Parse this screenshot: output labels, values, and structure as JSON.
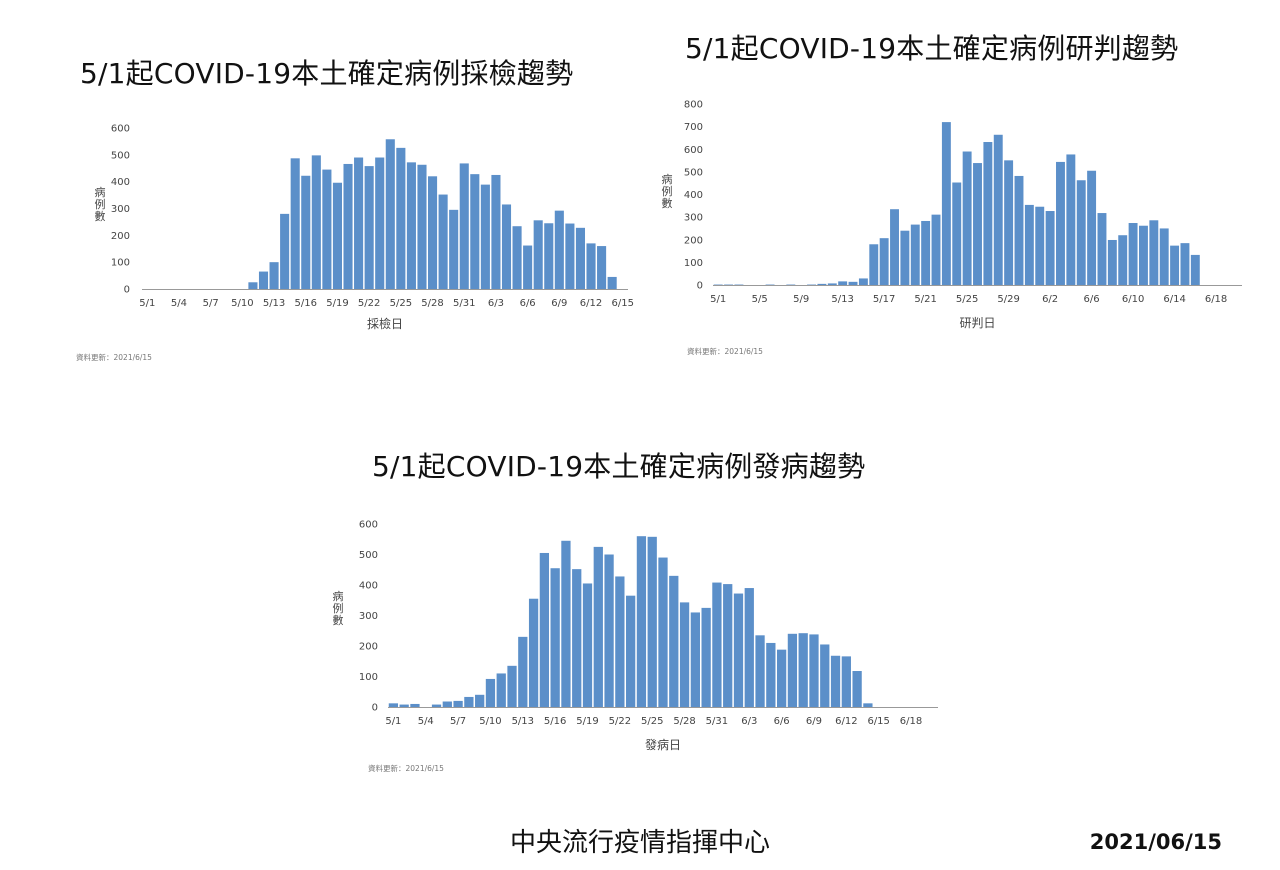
{
  "footer": {
    "org": "中央流行疫情指揮中心",
    "date": "2021/06/15"
  },
  "chart_data": [
    {
      "type": "bar",
      "title": "5/1起COVID-19本土確定病例採檢趨勢",
      "xlabel": "採檢日",
      "ylabel": "病例數",
      "ylim": [
        0,
        600
      ],
      "yticks": [
        0,
        100,
        200,
        300,
        400,
        500,
        600
      ],
      "note": "資料更新：2021/6/15",
      "x_start_label": "5/1",
      "xtick_labels": [
        "5/1",
        "5/4",
        "5/7",
        "5/10",
        "5/13",
        "5/16",
        "5/19",
        "5/22",
        "5/25",
        "5/28",
        "5/31",
        "6/3",
        "6/6",
        "6/9",
        "6/12",
        "6/15"
      ],
      "color": "#5b8fc9",
      "categories": [
        "5/1",
        "5/2",
        "5/3",
        "5/4",
        "5/5",
        "5/6",
        "5/7",
        "5/8",
        "5/9",
        "5/10",
        "5/11",
        "5/12",
        "5/13",
        "5/14",
        "5/15",
        "5/16",
        "5/17",
        "5/18",
        "5/19",
        "5/20",
        "5/21",
        "5/22",
        "5/23",
        "5/24",
        "5/25",
        "5/26",
        "5/27",
        "5/28",
        "5/29",
        "5/30",
        "5/31",
        "6/1",
        "6/2",
        "6/3",
        "6/4",
        "6/5",
        "6/6",
        "6/7",
        "6/8",
        "6/9",
        "6/10",
        "6/11",
        "6/12",
        "6/13",
        "6/14",
        "6/15"
      ],
      "values": [
        0,
        0,
        0,
        0,
        0,
        0,
        0,
        0,
        0,
        0,
        25,
        65,
        100,
        280,
        487,
        422,
        498,
        445,
        396,
        466,
        490,
        458,
        490,
        558,
        526,
        472,
        463,
        420,
        352,
        295,
        468,
        428,
        389,
        425,
        315,
        234,
        162,
        256,
        245,
        292,
        244,
        228,
        170,
        160,
        45,
        0
      ]
    },
    {
      "type": "bar",
      "title": "5/1起COVID-19本土確定病例研判趨勢",
      "xlabel": "研判日",
      "ylabel": "病例數",
      "ylim": [
        0,
        800
      ],
      "yticks": [
        0,
        100,
        200,
        300,
        400,
        500,
        600,
        700,
        800
      ],
      "note": "資料更新：2021/6/15",
      "x_start_label": "5/1",
      "xtick_labels": [
        "5/1",
        "5/5",
        "5/9",
        "5/13",
        "5/17",
        "5/21",
        "5/25",
        "5/29",
        "6/2",
        "6/6",
        "6/10",
        "6/14",
        "6/18"
      ],
      "color": "#5b8fc9",
      "categories": [
        "5/1",
        "5/2",
        "5/3",
        "5/4",
        "5/5",
        "5/6",
        "5/7",
        "5/8",
        "5/9",
        "5/10",
        "5/11",
        "5/12",
        "5/13",
        "5/14",
        "5/15",
        "5/16",
        "5/17",
        "5/18",
        "5/19",
        "5/20",
        "5/21",
        "5/22",
        "5/23",
        "5/24",
        "5/25",
        "5/26",
        "5/27",
        "5/28",
        "5/29",
        "5/30",
        "5/31",
        "6/1",
        "6/2",
        "6/3",
        "6/4",
        "6/5",
        "6/6",
        "6/7",
        "6/8",
        "6/9",
        "6/10",
        "6/11",
        "6/12",
        "6/13",
        "6/14",
        "6/15",
        "6/16",
        "6/17",
        "6/18",
        "6/19",
        "6/20"
      ],
      "values": [
        2,
        2,
        2,
        0,
        0,
        2,
        0,
        2,
        0,
        2,
        5,
        7,
        16,
        14,
        29,
        180,
        207,
        335,
        240,
        267,
        283,
        311,
        720,
        453,
        590,
        539,
        632,
        664,
        551,
        482,
        354,
        346,
        327,
        544,
        577,
        463,
        505,
        318,
        199,
        220,
        274,
        262,
        286,
        250,
        174,
        185,
        133,
        0,
        0,
        0,
        0
      ]
    },
    {
      "type": "bar",
      "title": "5/1起COVID-19本土確定病例發病趨勢",
      "xlabel": "發病日",
      "ylabel": "病例數",
      "ylim": [
        0,
        600
      ],
      "yticks": [
        0,
        100,
        200,
        300,
        400,
        500,
        600
      ],
      "note": "資料更新：2021/6/15",
      "x_start_label": "5/1",
      "xtick_labels": [
        "5/1",
        "5/4",
        "5/7",
        "5/10",
        "5/13",
        "5/16",
        "5/19",
        "5/22",
        "5/25",
        "5/28",
        "5/31",
        "6/3",
        "6/6",
        "6/9",
        "6/12",
        "6/15",
        "6/18"
      ],
      "color": "#5b8fc9",
      "categories": [
        "5/1",
        "5/2",
        "5/3",
        "5/4",
        "5/5",
        "5/6",
        "5/7",
        "5/8",
        "5/9",
        "5/10",
        "5/11",
        "5/12",
        "5/13",
        "5/14",
        "5/15",
        "5/16",
        "5/17",
        "5/18",
        "5/19",
        "5/20",
        "5/21",
        "5/22",
        "5/23",
        "5/24",
        "5/25",
        "5/26",
        "5/27",
        "5/28",
        "5/29",
        "5/30",
        "5/31",
        "6/1",
        "6/2",
        "6/3",
        "6/4",
        "6/5",
        "6/6",
        "6/7",
        "6/8",
        "6/9",
        "6/10",
        "6/11",
        "6/12",
        "6/13",
        "6/14",
        "6/15",
        "6/16",
        "6/17",
        "6/18",
        "6/19",
        "6/20"
      ],
      "values": [
        12,
        8,
        10,
        0,
        8,
        18,
        20,
        33,
        40,
        92,
        110,
        135,
        230,
        355,
        505,
        455,
        545,
        452,
        405,
        525,
        500,
        428,
        365,
        560,
        558,
        490,
        430,
        343,
        310,
        325,
        408,
        403,
        372,
        390,
        235,
        210,
        188,
        240,
        242,
        238,
        205,
        168,
        166,
        118,
        12,
        0,
        0,
        0,
        0,
        0,
        0
      ]
    }
  ]
}
